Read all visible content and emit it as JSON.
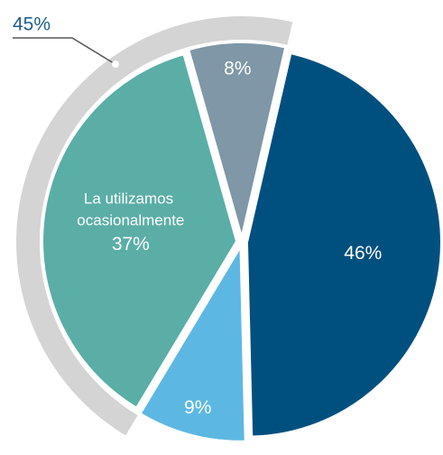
{
  "chart_data": {
    "type": "pie",
    "categories": [
      null,
      null,
      "La utilizamos ocasionalmente",
      null
    ],
    "values": [
      46,
      9,
      37,
      8
    ],
    "value_labels": [
      "46%",
      "9%",
      "37%",
      "8%"
    ],
    "colors": [
      "#00507f",
      "#5cb8e3",
      "#5aaea6",
      "#7f97a6"
    ],
    "group": {
      "value": 45,
      "label": "45%",
      "color": "#d4d4d4"
    }
  }
}
